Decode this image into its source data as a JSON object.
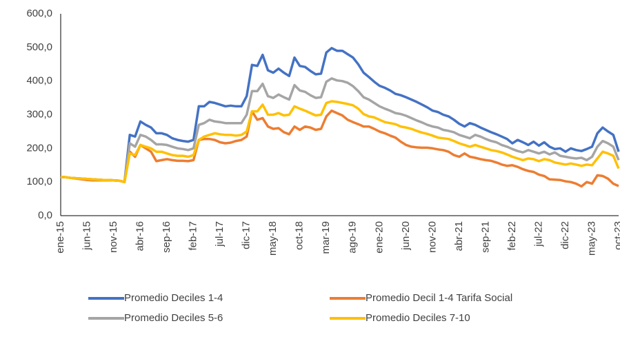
{
  "chart_data": {
    "type": "line",
    "categories": [
      "ene-15",
      null,
      null,
      null,
      null,
      "jun-15",
      null,
      null,
      null,
      null,
      "nov-15",
      null,
      null,
      null,
      null,
      "abr-16",
      null,
      null,
      null,
      null,
      "sep-16",
      null,
      null,
      null,
      null,
      "feb-17",
      null,
      null,
      null,
      null,
      "jul-17",
      null,
      null,
      null,
      null,
      "dic-17",
      null,
      null,
      null,
      null,
      "may-18",
      null,
      null,
      null,
      null,
      "oct-18",
      null,
      null,
      null,
      null,
      "mar-19",
      null,
      null,
      null,
      null,
      "ago-19",
      null,
      null,
      null,
      null,
      "ene-20",
      null,
      null,
      null,
      null,
      "jun-20",
      null,
      null,
      null,
      null,
      "nov-20",
      null,
      null,
      null,
      null,
      "abr-21",
      null,
      null,
      null,
      null,
      "sep-21",
      null,
      null,
      null,
      null,
      "feb-22",
      null,
      null,
      null,
      null,
      "jul-22",
      null,
      null,
      null,
      null,
      "dic-22",
      null,
      null,
      null,
      null,
      "may-23",
      null,
      null,
      null,
      null,
      "oct-23"
    ],
    "series": [
      {
        "name": "Promedio Deciles 1-4",
        "color": "#4472c4",
        "values": [
          115,
          114,
          112,
          111,
          110,
          109,
          108,
          107,
          106,
          106,
          105,
          104,
          100,
          240,
          235,
          280,
          270,
          262,
          245,
          245,
          240,
          230,
          225,
          222,
          220,
          225,
          325,
          325,
          338,
          335,
          330,
          325,
          327,
          325,
          325,
          355,
          448,
          445,
          478,
          432,
          425,
          437,
          425,
          415,
          470,
          445,
          442,
          430,
          420,
          422,
          485,
          498,
          490,
          490,
          480,
          470,
          450,
          425,
          412,
          398,
          386,
          380,
          372,
          362,
          358,
          352,
          345,
          338,
          330,
          322,
          312,
          308,
          300,
          295,
          285,
          273,
          265,
          275,
          270,
          262,
          255,
          248,
          242,
          235,
          228,
          215,
          225,
          218,
          210,
          220,
          208,
          218,
          205,
          198,
          200,
          190,
          200,
          195,
          192,
          198,
          205,
          245,
          262,
          250,
          240,
          190
        ]
      },
      {
        "name": "Promedio Decil 1-4 Tarifa Social",
        "color": "#ed7d31",
        "values": [
          115,
          114,
          112,
          110,
          108,
          106,
          105,
          105,
          105,
          105,
          105,
          104,
          100,
          190,
          175,
          210,
          200,
          190,
          162,
          165,
          168,
          165,
          163,
          163,
          162,
          165,
          225,
          228,
          228,
          225,
          218,
          215,
          217,
          222,
          225,
          235,
          310,
          285,
          290,
          265,
          258,
          260,
          248,
          242,
          265,
          255,
          265,
          262,
          255,
          258,
          295,
          312,
          305,
          298,
          285,
          278,
          272,
          265,
          265,
          258,
          250,
          245,
          238,
          232,
          220,
          210,
          205,
          203,
          202,
          202,
          200,
          197,
          195,
          190,
          180,
          175,
          185,
          175,
          172,
          168,
          165,
          163,
          158,
          152,
          148,
          150,
          145,
          138,
          133,
          130,
          122,
          118,
          108,
          107,
          106,
          102,
          100,
          95,
          87,
          100,
          95,
          120,
          118,
          110,
          95,
          88
        ]
      },
      {
        "name": "Promedio Deciles 5-6",
        "color": "#a5a5a5",
        "values": [
          115,
          114,
          112,
          111,
          110,
          109,
          108,
          107,
          106,
          106,
          105,
          104,
          100,
          215,
          205,
          240,
          235,
          225,
          212,
          212,
          210,
          205,
          200,
          198,
          195,
          200,
          270,
          275,
          285,
          280,
          278,
          275,
          275,
          275,
          275,
          300,
          370,
          370,
          392,
          355,
          350,
          360,
          352,
          345,
          388,
          372,
          368,
          358,
          350,
          352,
          398,
          408,
          402,
          400,
          395,
          385,
          370,
          352,
          345,
          335,
          325,
          318,
          312,
          305,
          302,
          297,
          290,
          283,
          277,
          270,
          265,
          262,
          255,
          252,
          248,
          240,
          235,
          230,
          240,
          235,
          228,
          222,
          218,
          210,
          205,
          198,
          192,
          188,
          195,
          190,
          185,
          190,
          182,
          188,
          178,
          175,
          172,
          170,
          172,
          165,
          175,
          205,
          222,
          215,
          205,
          165
        ]
      },
      {
        "name": "Promedio Deciles 7-10",
        "color": "#ffc000",
        "values": [
          115,
          114,
          112,
          111,
          110,
          109,
          108,
          107,
          106,
          106,
          105,
          104,
          100,
          185,
          180,
          210,
          205,
          200,
          190,
          190,
          185,
          180,
          178,
          178,
          175,
          180,
          225,
          235,
          240,
          245,
          242,
          240,
          240,
          238,
          240,
          250,
          310,
          310,
          330,
          300,
          300,
          305,
          298,
          300,
          325,
          318,
          312,
          305,
          298,
          300,
          335,
          340,
          338,
          335,
          332,
          328,
          318,
          302,
          295,
          292,
          285,
          278,
          275,
          272,
          265,
          262,
          258,
          252,
          247,
          243,
          238,
          232,
          230,
          228,
          222,
          215,
          210,
          205,
          210,
          205,
          200,
          195,
          192,
          188,
          182,
          175,
          170,
          165,
          170,
          168,
          162,
          168,
          165,
          158,
          155,
          152,
          155,
          152,
          148,
          152,
          150,
          170,
          190,
          185,
          178,
          140
        ]
      }
    ],
    "ylim": [
      0,
      600
    ],
    "yticks": [
      {
        "value": 0,
        "label": "0,0"
      },
      {
        "value": 100,
        "label": "100,0"
      },
      {
        "value": 200,
        "label": "200,0"
      },
      {
        "value": 300,
        "label": "300,0"
      },
      {
        "value": 400,
        "label": "400,0"
      },
      {
        "value": 500,
        "label": "500,0"
      },
      {
        "value": 600,
        "label": "600,0"
      }
    ],
    "grid": false,
    "legend": "bottom"
  }
}
